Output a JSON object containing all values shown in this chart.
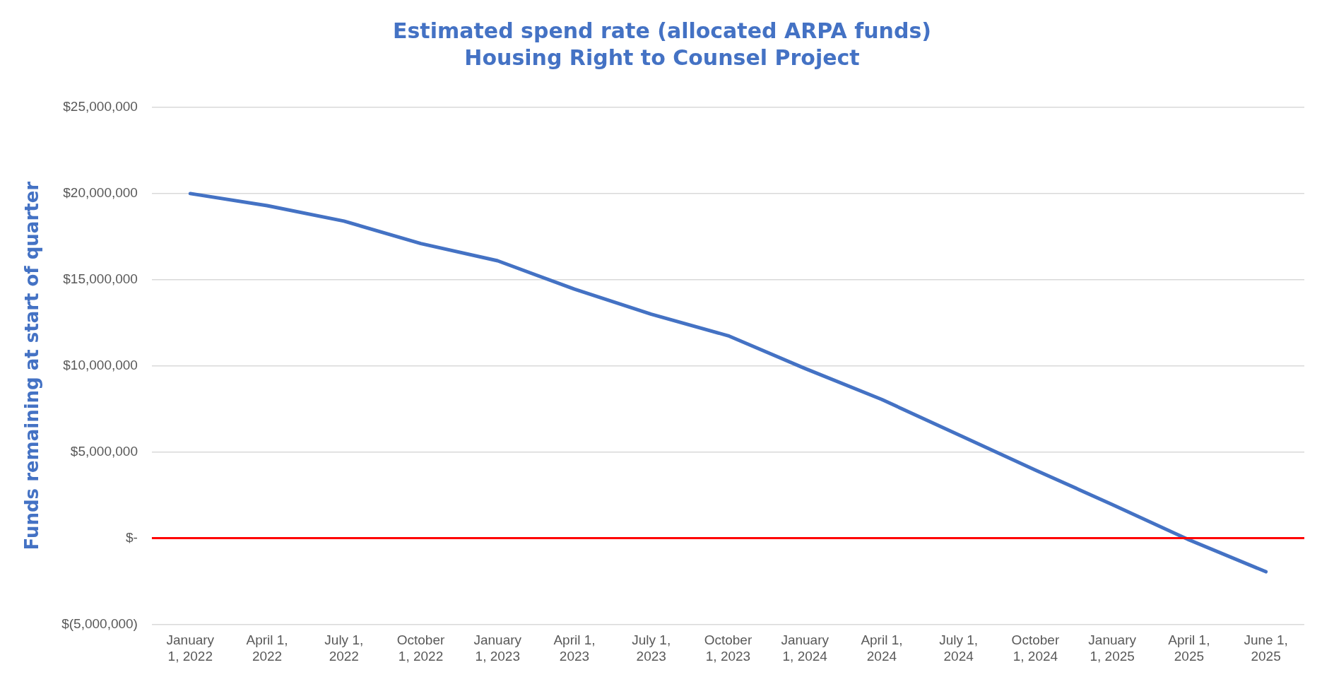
{
  "chart_data": {
    "type": "line",
    "title": "Estimated spend rate (allocated ARPA funds)",
    "subtitle": "Housing Right to Counsel Project",
    "ylabel": "Funds remaining at start of quarter",
    "categories": [
      "January 1, 2022",
      "April 1, 2022",
      "July 1, 2022",
      "October 1, 2022",
      "January 1, 2023",
      "April 1, 2023",
      "July 1, 2023",
      "October 1, 2023",
      "January 1, 2024",
      "April 1, 2024",
      "July 1, 2024",
      "October 1, 2024",
      "January 1, 2025",
      "April 1, 2025",
      "June 1, 2025"
    ],
    "series": [
      {
        "color": "#4472c4",
        "values": [
          20000000,
          19300000,
          18400000,
          17100000,
          16100000,
          14450000,
          13000000,
          11750000,
          9850000,
          8050000,
          6000000,
          3950000,
          1950000,
          -100000,
          -1950000
        ]
      }
    ],
    "ylim": [
      -5000000,
      25000000
    ],
    "yticks": [
      {
        "value": -5000000,
        "label": "$(5,000,000)"
      },
      {
        "value": 0,
        "label": "$-"
      },
      {
        "value": 5000000,
        "label": "$5,000,000"
      },
      {
        "value": 10000000,
        "label": "$10,000,000"
      },
      {
        "value": 15000000,
        "label": "$15,000,000"
      },
      {
        "value": 20000000,
        "label": "$20,000,000"
      },
      {
        "value": 25000000,
        "label": "$25,000,000"
      }
    ],
    "ref_lines": [
      {
        "axis": "y",
        "value": 0,
        "color": "#ff0000"
      }
    ],
    "grid": "y",
    "legend": false,
    "marker": "none",
    "line_style": "solid"
  }
}
